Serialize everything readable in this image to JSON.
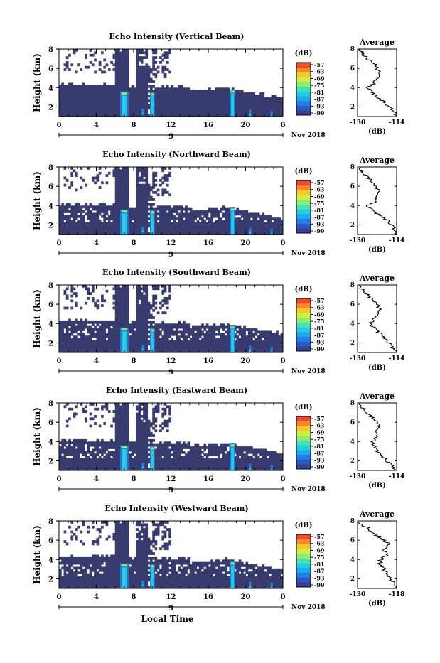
{
  "chart_data": [
    {
      "type": "heatmap",
      "title": "Echo Intensity (Vertical Beam)",
      "ylabel": "Height (km)",
      "xlabel": "",
      "x_ticks": [
        "0",
        "4",
        "8",
        "12",
        "16",
        "20",
        "0"
      ],
      "y_ticks": [
        "2",
        "4",
        "6",
        "8"
      ],
      "xlim": [
        0,
        24
      ],
      "ylim": [
        1,
        8
      ],
      "date_tick": "9",
      "date_label": "Nov 2018",
      "cbar_label": "(dB)",
      "cbar_ticks": [
        "-57",
        "-63",
        "-69",
        "-75",
        "-81",
        "-87",
        "-93",
        "-99"
      ],
      "profile": {
        "title": "Average",
        "xlabel": "(dB)",
        "x_ticks": [
          "-130",
          "-114"
        ],
        "y_ticks": [
          "2",
          "4",
          "6",
          "8"
        ],
        "heights": [
          1.0,
          1.5,
          2.0,
          2.5,
          3.0,
          3.5,
          4.0,
          4.5,
          5.0,
          5.5,
          6.0,
          6.5,
          7.0,
          7.5,
          8.0
        ],
        "values": [
          -114,
          -115,
          -117,
          -119,
          -122,
          -124,
          -126,
          -123,
          -122,
          -121,
          -122,
          -123,
          -126,
          -128,
          -129
        ]
      }
    },
    {
      "type": "heatmap",
      "title": "Echo Intensity (Northward Beam)",
      "ylabel": "Height (km)",
      "xlabel": "",
      "x_ticks": [
        "0",
        "4",
        "8",
        "12",
        "16",
        "20",
        "0"
      ],
      "y_ticks": [
        "2",
        "4",
        "6",
        "8"
      ],
      "xlim": [
        0,
        24
      ],
      "ylim": [
        1,
        8
      ],
      "date_tick": "9",
      "date_label": "Nov 2018",
      "cbar_label": "(dB)",
      "cbar_ticks": [
        "-57",
        "-63",
        "-69",
        "-75",
        "-81",
        "-87",
        "-93",
        "-99"
      ],
      "profile": {
        "title": "Average",
        "xlabel": "(dB)",
        "x_ticks": [
          "-130",
          "-114"
        ],
        "y_ticks": [
          "2",
          "4",
          "6",
          "8"
        ],
        "heights": [
          1.0,
          1.5,
          2.0,
          2.5,
          3.0,
          3.5,
          4.0,
          4.5,
          5.0,
          5.5,
          6.0,
          6.5,
          7.0,
          7.5,
          8.0
        ],
        "values": [
          -114,
          -115,
          -116,
          -118,
          -121,
          -124,
          -126,
          -122,
          -123,
          -121,
          -123,
          -124,
          -126,
          -128,
          -129
        ]
      }
    },
    {
      "type": "heatmap",
      "title": "Echo Intensity (Southward Beam)",
      "ylabel": "Height (km)",
      "xlabel": "",
      "x_ticks": [
        "0",
        "4",
        "8",
        "12",
        "16",
        "20",
        "0"
      ],
      "y_ticks": [
        "2",
        "4",
        "6",
        "8"
      ],
      "xlim": [
        0,
        24
      ],
      "ylim": [
        1,
        8
      ],
      "date_tick": "9",
      "date_label": "Nov 2018",
      "cbar_label": "(dB)",
      "cbar_ticks": [
        "-57",
        "-63",
        "-69",
        "-75",
        "-81",
        "-87",
        "-93",
        "-99"
      ],
      "profile": {
        "title": "Average",
        "xlabel": "(dB)",
        "x_ticks": [
          "-130",
          "-114"
        ],
        "y_ticks": [
          "2",
          "4",
          "6",
          "8"
        ],
        "heights": [
          1.0,
          1.5,
          2.0,
          2.5,
          3.0,
          3.5,
          4.0,
          4.5,
          5.0,
          5.5,
          6.0,
          6.5,
          7.0,
          7.5,
          8.0
        ],
        "values": [
          -114,
          -116,
          -117,
          -119,
          -121,
          -123,
          -125,
          -123,
          -122,
          -121,
          -122,
          -124,
          -126,
          -128,
          -129
        ]
      }
    },
    {
      "type": "heatmap",
      "title": "Echo Intensity (Eastward Beam)",
      "ylabel": "Height (km)",
      "xlabel": "",
      "x_ticks": [
        "0",
        "4",
        "8",
        "12",
        "16",
        "20",
        "0"
      ],
      "y_ticks": [
        "2",
        "4",
        "6",
        "8"
      ],
      "xlim": [
        0,
        24
      ],
      "ylim": [
        1,
        8
      ],
      "date_tick": "9",
      "date_label": "Nov 2018",
      "cbar_label": "(dB)",
      "cbar_ticks": [
        "-57",
        "-63",
        "-69",
        "-75",
        "-81",
        "-87",
        "-93",
        "-99"
      ],
      "profile": {
        "title": "Average",
        "xlabel": "(dB)",
        "x_ticks": [
          "-130",
          "-114"
        ],
        "y_ticks": [
          "2",
          "4",
          "6",
          "8"
        ],
        "heights": [
          1.0,
          1.5,
          2.0,
          2.5,
          3.0,
          3.5,
          4.0,
          4.5,
          5.0,
          5.5,
          6.0,
          6.5,
          7.0,
          7.5,
          8.0
        ],
        "values": [
          -115,
          -116,
          -118,
          -120,
          -122,
          -123,
          -124,
          -122,
          -123,
          -121,
          -122,
          -124,
          -126,
          -128,
          -129
        ]
      }
    },
    {
      "type": "heatmap",
      "title": "Echo Intensity (Westward Beam)",
      "ylabel": "Height (km)",
      "xlabel": "Local Time",
      "x_ticks": [
        "0",
        "4",
        "8",
        "12",
        "16",
        "20",
        "0"
      ],
      "y_ticks": [
        "2",
        "4",
        "6",
        "8"
      ],
      "xlim": [
        0,
        24
      ],
      "ylim": [
        1,
        8
      ],
      "date_tick": "9",
      "date_label": "Nov 2018",
      "cbar_label": "(dB)",
      "cbar_ticks": [
        "-57",
        "-63",
        "-69",
        "-75",
        "-81",
        "-87",
        "-93",
        "-99"
      ],
      "profile": {
        "title": "Average",
        "xlabel": "(dB)",
        "x_ticks": [
          "-130",
          "-118"
        ],
        "y_ticks": [
          "2",
          "4",
          "6",
          "8"
        ],
        "heights": [
          1.0,
          1.5,
          2.0,
          2.5,
          3.0,
          3.5,
          4.0,
          4.5,
          5.0,
          5.5,
          6.0,
          6.5,
          7.0,
          7.5,
          8.0
        ],
        "values": [
          -118,
          -119,
          -120,
          -121,
          -122,
          -123,
          -123,
          -121,
          -122,
          -120,
          -122,
          -124,
          -126,
          -128,
          -130
        ]
      }
    }
  ]
}
